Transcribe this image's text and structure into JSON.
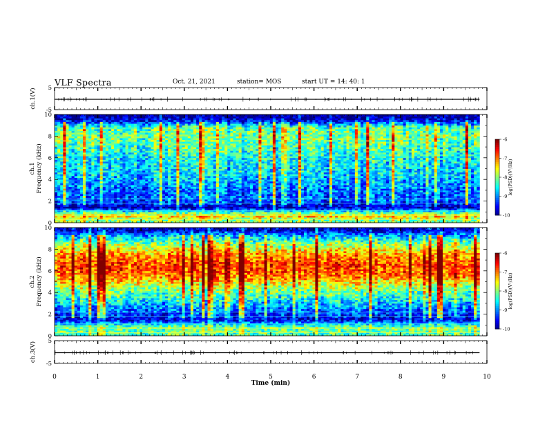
{
  "header": {
    "title": "VLF Spectra",
    "date": "Oct. 21, 2021",
    "station": "station= MOS",
    "start_ut": "start  UT =   14: 40: 1"
  },
  "colors": {
    "spectrogram_low": "#00005a",
    "spectrogram_mid": "#00ff66",
    "spectrogram_high": "#ff1a00",
    "axis": "#000000",
    "background": "#ffffff"
  },
  "chart_data": [
    {
      "type": "line",
      "name": "ch1-voltage",
      "ylabel": "ch.1(V)",
      "yticks": [
        "5",
        "-5"
      ],
      "ylim": [
        -5,
        5
      ],
      "xlim": [
        0,
        10
      ],
      "series": [
        {
          "values_description_level": 0,
          "x": [
            0,
            9.83
          ],
          "y": [
            0,
            0
          ]
        }
      ]
    },
    {
      "type": "heatmap",
      "name": "ch1-spectrogram",
      "ylabel": "ch.1\nFrequency (kHz)",
      "ylabel_lines": [
        "ch.1",
        "Frequency (kHz)"
      ],
      "yticks": [
        "0",
        "2",
        "4",
        "6",
        "8",
        "10"
      ],
      "ylim": [
        0,
        10
      ],
      "xlim": [
        0,
        10
      ],
      "data_end_min": 9.83,
      "colorbar": {
        "label": "log(PSD)(V²/Hz)",
        "ticks": [
          "-6",
          "-7",
          "-8",
          "-9",
          "-10"
        ],
        "range": [
          -10,
          -6
        ]
      },
      "band_profile": [
        {
          "f": 0.3,
          "level": -8.0
        },
        {
          "f": 0.6,
          "level": -7.3
        },
        {
          "f": 1.0,
          "level": -8.4
        },
        {
          "f": 1.4,
          "level": -9.8
        },
        {
          "f": 2.0,
          "level": -9.2
        },
        {
          "f": 3.0,
          "level": -9.1
        },
        {
          "f": 4.0,
          "level": -8.8
        },
        {
          "f": 5.0,
          "level": -8.6
        },
        {
          "f": 6.0,
          "level": -8.5
        },
        {
          "f": 7.0,
          "level": -8.2
        },
        {
          "f": 8.0,
          "level": -8.0
        },
        {
          "f": 8.8,
          "level": -8.2
        },
        {
          "f": 9.3,
          "level": -9.3
        },
        {
          "f": 9.8,
          "level": -9.9
        }
      ]
    },
    {
      "type": "heatmap",
      "name": "ch2-spectrogram",
      "ylabel_lines": [
        "ch.2",
        "Frequency (kHz)"
      ],
      "yticks": [
        "0",
        "2",
        "4",
        "6",
        "8",
        "10"
      ],
      "ylim": [
        0,
        10
      ],
      "xlim": [
        0,
        10
      ],
      "data_end_min": 9.83,
      "colorbar": {
        "label": "log(PSD)(V²/Hz)",
        "ticks": [
          "-6",
          "-7",
          "-8",
          "-9",
          "-10"
        ],
        "range": [
          -10,
          -6
        ]
      },
      "band_profile": [
        {
          "f": 0.3,
          "level": -8.2
        },
        {
          "f": 0.8,
          "level": -8.0
        },
        {
          "f": 1.5,
          "level": -9.6
        },
        {
          "f": 2.5,
          "level": -9.0
        },
        {
          "f": 3.5,
          "level": -8.4
        },
        {
          "f": 4.5,
          "level": -7.8
        },
        {
          "f": 5.5,
          "level": -7.0
        },
        {
          "f": 6.5,
          "level": -6.7
        },
        {
          "f": 7.5,
          "level": -7.1
        },
        {
          "f": 8.5,
          "level": -7.9
        },
        {
          "f": 9.3,
          "level": -8.9
        },
        {
          "f": 9.8,
          "level": -9.7
        }
      ]
    },
    {
      "type": "line",
      "name": "ch3-voltage",
      "ylabel": "ch.3(V)",
      "yticks": [
        "5",
        "-5"
      ],
      "ylim": [
        -5,
        5
      ],
      "xlim": [
        0,
        10
      ],
      "xlabel": "Time  (min)",
      "xticks": [
        "0",
        "1",
        "2",
        "3",
        "4",
        "5",
        "6",
        "7",
        "8",
        "9",
        "10"
      ],
      "series": [
        {
          "x": [
            0,
            9.83
          ],
          "y": [
            0,
            0
          ]
        }
      ]
    }
  ]
}
